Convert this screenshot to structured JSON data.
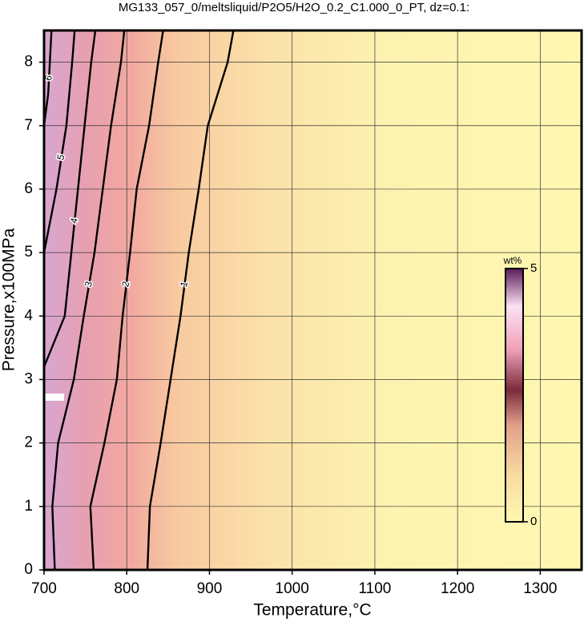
{
  "chart_data": {
    "type": "contour",
    "title": "MG133_057_0/meltsliquid/P2O5/H2O_0.2_C1.000_0_PT, dz=0.1:",
    "x_label": "Temperature,°C",
    "y_label": "Pressure,x100MPa",
    "xlim": [
      700,
      1350
    ],
    "xticks": [
      700,
      800,
      900,
      1000,
      1100,
      1200,
      1300
    ],
    "ylim": [
      0,
      8.5
    ],
    "yticks": [
      0,
      1,
      2,
      3,
      4,
      5,
      6,
      7,
      8
    ],
    "grid": true,
    "contours": [
      {
        "level": 1,
        "x": [
          825,
          828,
          841,
          853,
          865,
          875,
          887,
          898,
          922,
          929
        ],
        "y": [
          0,
          1,
          2,
          3,
          4,
          5,
          6,
          7,
          8,
          8.5
        ]
      },
      {
        "level": 2,
        "x": [
          760,
          756,
          773,
          788,
          795,
          804,
          812,
          827,
          838,
          844
        ],
        "y": [
          0,
          1,
          2,
          3,
          4,
          5,
          6,
          7,
          8,
          8.5
        ]
      },
      {
        "level": 3,
        "x": [
          713,
          710,
          717,
          736,
          748,
          761,
          771,
          781,
          793,
          797
        ],
        "y": [
          0,
          1,
          2,
          3,
          4,
          5,
          6,
          7,
          8,
          8.5
        ]
      },
      {
        "level": 4,
        "x": [
          700,
          725,
          733,
          741,
          749,
          757,
          762
        ],
        "y": [
          3.2,
          4,
          5,
          6,
          7,
          8,
          8.5
        ]
      },
      {
        "level": 5,
        "x": [
          700,
          715,
          727,
          734,
          737
        ],
        "y": [
          5,
          6,
          7,
          8,
          8.5
        ]
      },
      {
        "level": 6,
        "x": [
          700,
          705,
          707,
          709
        ],
        "y": [
          7,
          7.5,
          8,
          8.5
        ]
      }
    ],
    "colorbar": {
      "label": "wt%",
      "lim": [
        0,
        5
      ],
      "ticks": [
        0,
        5
      ]
    }
  }
}
